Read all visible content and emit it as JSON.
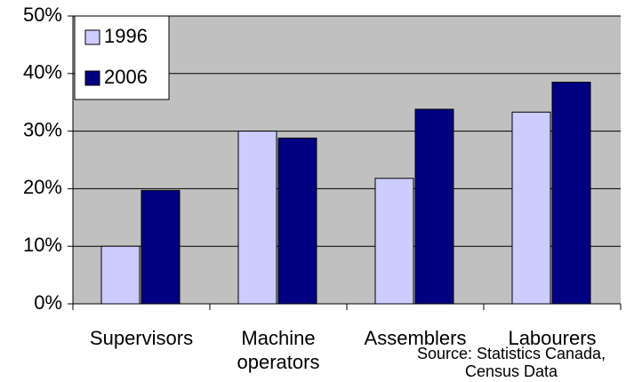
{
  "chart_data": {
    "type": "bar",
    "categories": [
      "Supervisors",
      "Machine operators",
      "Assemblers",
      "Labourers"
    ],
    "series": [
      {
        "name": "1996",
        "color": "#ccccff",
        "values": [
          10,
          30,
          21.8,
          33.3
        ]
      },
      {
        "name": "2006",
        "color": "#000080",
        "values": [
          19.7,
          28.8,
          33.8,
          38.5
        ]
      }
    ],
    "ylim": [
      0,
      50
    ],
    "yticks": [
      {
        "value": 0,
        "label": "0%"
      },
      {
        "value": 10,
        "label": "10%"
      },
      {
        "value": 20,
        "label": "20%"
      },
      {
        "value": 30,
        "label": "30%"
      },
      {
        "value": 40,
        "label": "40%"
      },
      {
        "value": 50,
        "label": "50%"
      }
    ],
    "grid": true,
    "legend": "top-left",
    "annotation": "Source: Statistics Canada, Census Data"
  }
}
